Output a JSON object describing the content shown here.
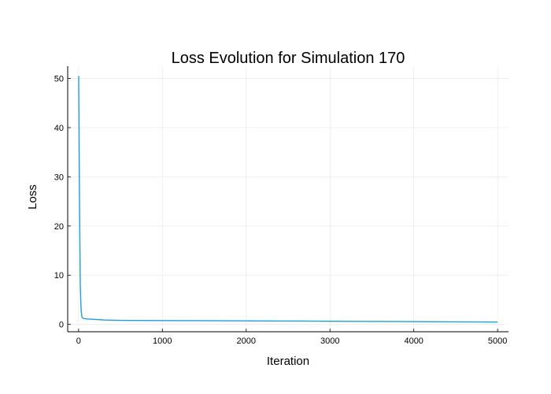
{
  "chart_data": {
    "type": "line",
    "title": "Loss Evolution for Simulation 170",
    "xlabel": "Iteration",
    "ylabel": "Loss",
    "xlim": [
      -130,
      5130
    ],
    "ylim": [
      -1.5,
      52.5
    ],
    "xticks": [
      0,
      1000,
      2000,
      3000,
      4000,
      5000
    ],
    "yticks": [
      0,
      10,
      20,
      30,
      40,
      50
    ],
    "grid": true,
    "legend": "none",
    "series": [
      {
        "color": "#1f9ee0",
        "x": [
          1,
          10,
          20,
          30,
          40,
          50,
          60,
          80,
          100,
          150,
          200,
          300,
          400,
          500,
          700,
          1000,
          1500,
          2000,
          2500,
          3000,
          3500,
          4000,
          4500,
          5000
        ],
        "y": [
          50.5,
          28.0,
          8.0,
          3.0,
          1.5,
          1.3,
          1.2,
          1.15,
          1.1,
          1.05,
          1.0,
          0.9,
          0.85,
          0.82,
          0.8,
          0.78,
          0.75,
          0.72,
          0.68,
          0.64,
          0.6,
          0.56,
          0.52,
          0.48
        ]
      }
    ]
  }
}
